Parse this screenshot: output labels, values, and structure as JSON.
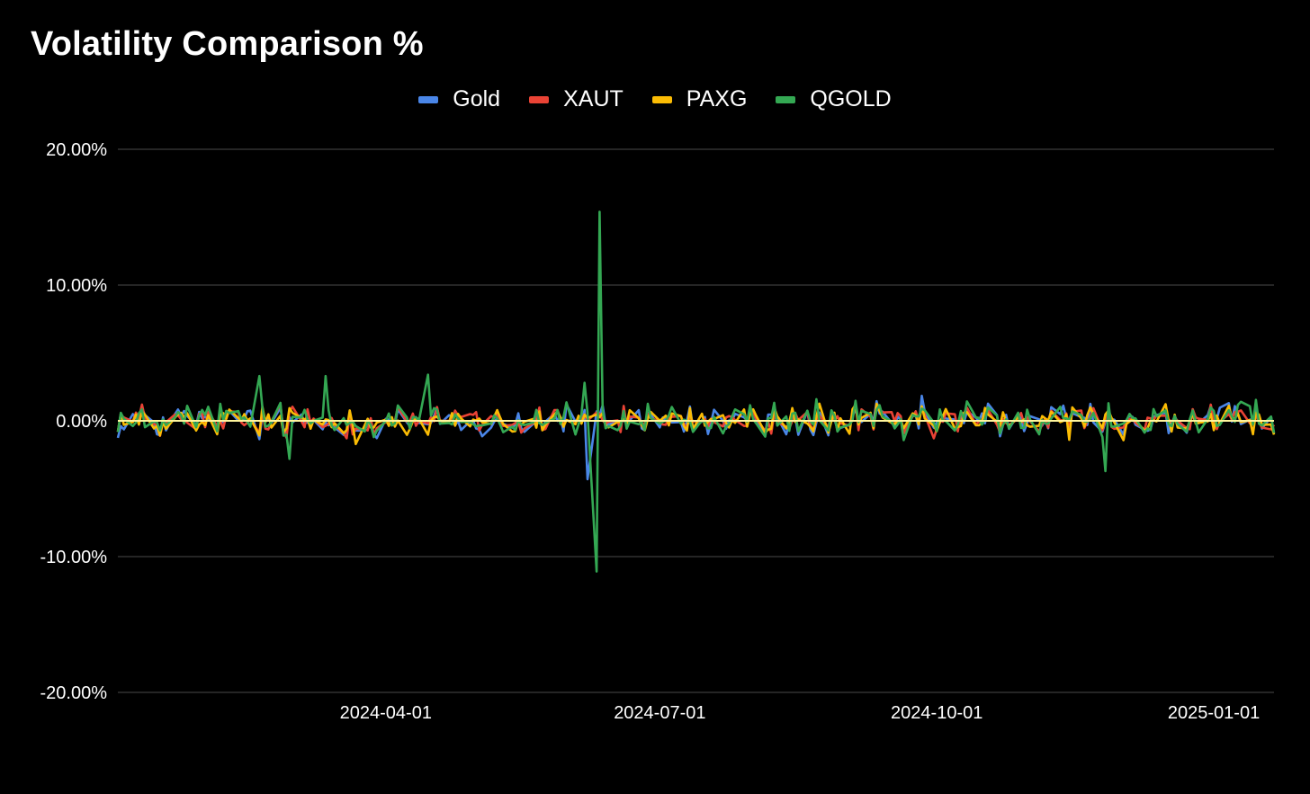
{
  "chart_data": {
    "type": "line",
    "title": "Volatility Comparison %",
    "xlabel": "",
    "ylabel": "",
    "ylim": [
      -20,
      20
    ],
    "yticks": [
      {
        "value": 20,
        "label": "20.00%"
      },
      {
        "value": 10,
        "label": "10.00%"
      },
      {
        "value": 0,
        "label": "0.00%"
      },
      {
        "value": -10,
        "label": "-10.00%"
      },
      {
        "value": -20,
        "label": "-20.00%"
      }
    ],
    "xrange": [
      "2024-01-03",
      "2025-01-21"
    ],
    "xticks": [
      "2024-04-01",
      "2024-07-01",
      "2024-10-01",
      "2025-01-01"
    ],
    "grid": true,
    "legend_position": "top-center",
    "series": [
      {
        "name": "Gold",
        "color": "#4a86e8"
      },
      {
        "name": "XAUT",
        "color": "#ea4335"
      },
      {
        "name": "PAXG",
        "color": "#fbbc04"
      },
      {
        "name": "QGOLD",
        "color": "#34a853"
      }
    ],
    "notable_points": [
      {
        "series": "QGOLD",
        "date": "2024-06-11",
        "value": 15.4
      },
      {
        "series": "QGOLD",
        "date": "2024-06-10",
        "value": -11.1
      },
      {
        "series": "QGOLD",
        "date": "2024-06-06",
        "value": 2.8
      },
      {
        "series": "Gold",
        "date": "2024-06-07",
        "value": -4.3
      },
      {
        "series": "QGOLD",
        "date": "2024-02-19",
        "value": 3.3
      },
      {
        "series": "QGOLD",
        "date": "2024-03-12",
        "value": 3.3
      },
      {
        "series": "QGOLD",
        "date": "2024-04-15",
        "value": 3.4
      },
      {
        "series": "QGOLD",
        "date": "2024-11-26",
        "value": -3.7
      },
      {
        "series": "QGOLD",
        "date": "2024-02-29",
        "value": -2.8
      }
    ]
  }
}
